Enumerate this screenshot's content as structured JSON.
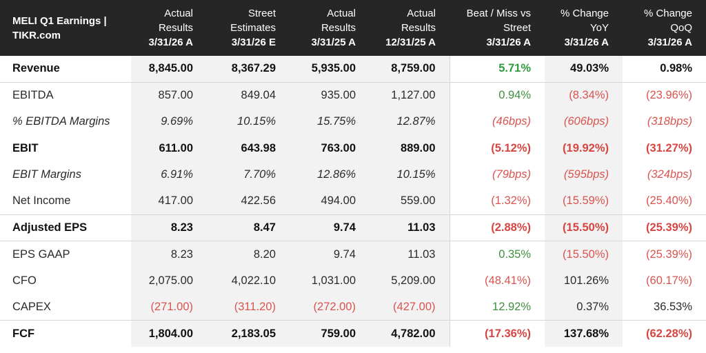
{
  "header": {
    "title_line1": "MELI Q1 Earnings |",
    "title_line2": "TIKR.com",
    "columns": [
      {
        "line1": "Actual",
        "line2": "Results",
        "period": "3/31/26 A"
      },
      {
        "line1": "Street",
        "line2": "Estimates",
        "period": "3/31/26 E"
      },
      {
        "line1": "Actual",
        "line2": "Results",
        "period": "3/31/25 A"
      },
      {
        "line1": "Actual",
        "line2": "Results",
        "period": "12/31/25 A"
      },
      {
        "line1": "Beat / Miss vs",
        "line2": "Street",
        "period": "3/31/26 A"
      },
      {
        "line1": "% Change",
        "line2": "YoY",
        "period": "3/31/26 A"
      },
      {
        "line1": "% Change",
        "line2": "QoQ",
        "period": "3/31/26 A"
      }
    ]
  },
  "rows": [
    {
      "label": "Revenue",
      "actual": "8,845.00",
      "estimate": "8,367.29",
      "prior_year": "5,935.00",
      "prior_quarter": "8,759.00",
      "beat_miss": "5.71%",
      "yoy": "49.03%",
      "qoq": "0.98%"
    },
    {
      "label": "EBITDA",
      "actual": "857.00",
      "estimate": "849.04",
      "prior_year": "935.00",
      "prior_quarter": "1,127.00",
      "beat_miss": "0.94%",
      "yoy": "(8.34%)",
      "qoq": "(23.96%)"
    },
    {
      "label": "% EBITDA Margins",
      "actual": "9.69%",
      "estimate": "10.15%",
      "prior_year": "15.75%",
      "prior_quarter": "12.87%",
      "beat_miss": "(46bps)",
      "yoy": "(606bps)",
      "qoq": "(318bps)"
    },
    {
      "label": "EBIT",
      "actual": "611.00",
      "estimate": "643.98",
      "prior_year": "763.00",
      "prior_quarter": "889.00",
      "beat_miss": "(5.12%)",
      "yoy": "(19.92%)",
      "qoq": "(31.27%)"
    },
    {
      "label": "EBIT Margins",
      "actual": "6.91%",
      "estimate": "7.70%",
      "prior_year": "12.86%",
      "prior_quarter": "10.15%",
      "beat_miss": "(79bps)",
      "yoy": "(595bps)",
      "qoq": "(324bps)"
    },
    {
      "label": "Net Income",
      "actual": "417.00",
      "estimate": "422.56",
      "prior_year": "494.00",
      "prior_quarter": "559.00",
      "beat_miss": "(1.32%)",
      "yoy": "(15.59%)",
      "qoq": "(25.40%)"
    },
    {
      "label": "Adjusted EPS",
      "actual": "8.23",
      "estimate": "8.47",
      "prior_year": "9.74",
      "prior_quarter": "11.03",
      "beat_miss": "(2.88%)",
      "yoy": "(15.50%)",
      "qoq": "(25.39%)"
    },
    {
      "label": "EPS GAAP",
      "actual": "8.23",
      "estimate": "8.20",
      "prior_year": "9.74",
      "prior_quarter": "11.03",
      "beat_miss": "0.35%",
      "yoy": "(15.50%)",
      "qoq": "(25.39%)"
    },
    {
      "label": "CFO",
      "actual": "2,075.00",
      "estimate": "4,022.10",
      "prior_year": "1,031.00",
      "prior_quarter": "5,209.00",
      "beat_miss": "(48.41%)",
      "yoy": "101.26%",
      "qoq": "(60.17%)"
    },
    {
      "label": "CAPEX",
      "actual": "(271.00)",
      "estimate": "(311.20)",
      "prior_year": "(272.00)",
      "prior_quarter": "(427.00)",
      "beat_miss": "12.92%",
      "yoy": "0.37%",
      "qoq": "36.53%"
    },
    {
      "label": "FCF",
      "actual": "1,804.00",
      "estimate": "2,183.05",
      "prior_year": "759.00",
      "prior_quarter": "4,782.00",
      "beat_miss": "(17.36%)",
      "yoy": "137.68%",
      "qoq": "(62.28%)"
    }
  ],
  "colors": {
    "header_bg": "#262626",
    "shade_bg": "#f2f2f2",
    "positive": "#3f8f3f",
    "negative": "#d9534f"
  }
}
